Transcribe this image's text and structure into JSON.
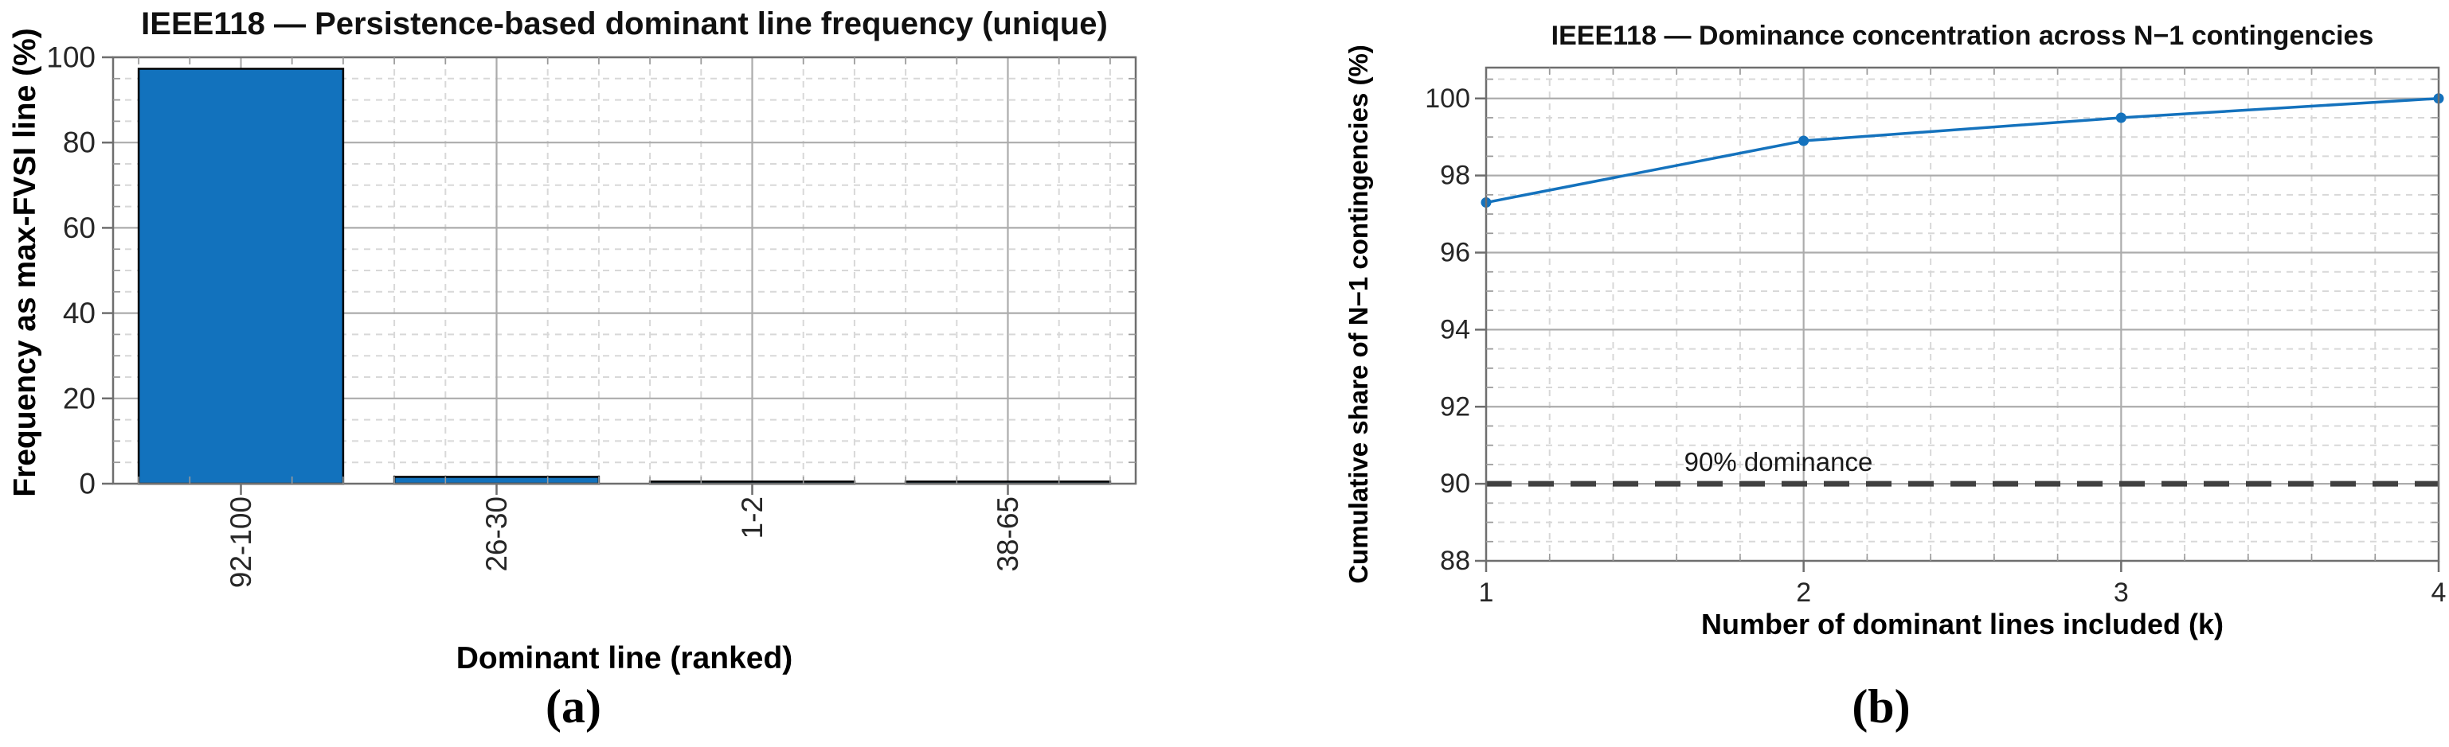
{
  "figure": {
    "background": "#ffffff",
    "grid_major_color": "#ACACAC",
    "grid_minor_color": "#D8D8D8",
    "axis_color": "#6E6E6E",
    "tick_label_color": "#262626"
  },
  "chart_data": [
    {
      "panel": "a",
      "type": "bar",
      "title": "IEEE118 — Persistence-based dominant line frequency (unique)",
      "xlabel": "Dominant line (ranked)",
      "ylabel": "Frequency as max-FVSI line (%)",
      "categories": [
        "92-100",
        "26-30",
        "1-2",
        "38-65"
      ],
      "values": [
        97.3,
        1.6,
        0.5,
        0.5
      ],
      "ylim": [
        0,
        100
      ],
      "yticks": [
        0,
        20,
        40,
        60,
        80,
        100
      ],
      "y_minor_step": 5,
      "x_minor_subdivisions": 5,
      "grid": true,
      "minor_grid": true,
      "legend": "none",
      "xtick_rotation_deg": 90,
      "caption": "(a)",
      "colors": {
        "bar_fill": "#1272BD",
        "bar_edge": "#000000"
      }
    },
    {
      "panel": "b",
      "type": "line",
      "title": "IEEE118 — Dominance concentration across N−1 contingencies",
      "xlabel": "Number of dominant lines included (k)",
      "ylabel": "Cumulative share of N−1 contingencies (%)",
      "x": [
        1,
        2,
        3,
        4
      ],
      "values": [
        97.3,
        98.9,
        99.5,
        100.0
      ],
      "xlim": [
        1,
        4
      ],
      "ylim": [
        88,
        100.8
      ],
      "xticks": [
        1,
        2,
        3,
        4
      ],
      "yticks": [
        88,
        90,
        92,
        94,
        96,
        98,
        100
      ],
      "x_minor_step": 0.2,
      "y_minor_step": 0.5,
      "grid": true,
      "minor_grid": true,
      "legend": "none",
      "marker": "circle",
      "caption": "(b)",
      "threshold": {
        "value": 90,
        "label": "90% dominance",
        "color": "#404040",
        "style": "dashed"
      },
      "colors": {
        "line": "#1472BD",
        "marker": "#1472BD"
      }
    }
  ]
}
